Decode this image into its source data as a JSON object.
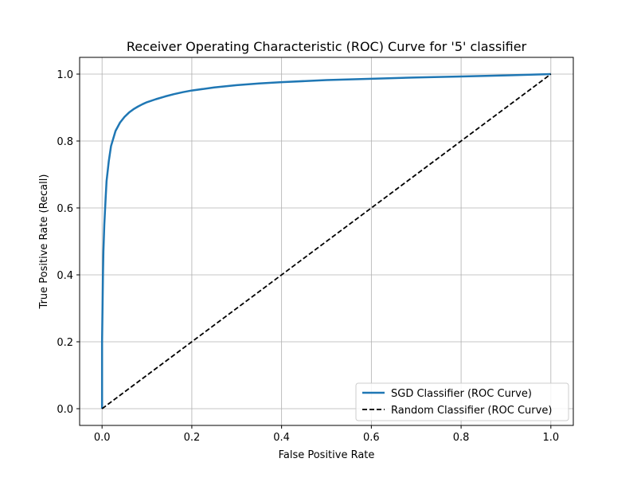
{
  "chart_data": {
    "type": "line",
    "title": "Receiver Operating Characteristic (ROC) Curve for '5' classifier",
    "xlabel": "False Positive Rate",
    "ylabel": "True Positive Rate (Recall)",
    "xlim": [
      -0.05,
      1.05
    ],
    "ylim": [
      -0.05,
      1.05
    ],
    "xticks": [
      0.0,
      0.2,
      0.4,
      0.6,
      0.8,
      1.0
    ],
    "xtick_labels": [
      "0.0",
      "0.2",
      "0.4",
      "0.6",
      "0.8",
      "1.0"
    ],
    "yticks": [
      0.0,
      0.2,
      0.4,
      0.6,
      0.8,
      1.0
    ],
    "ytick_labels": [
      "0.0",
      "0.2",
      "0.4",
      "0.6",
      "0.8",
      "1.0"
    ],
    "grid": true,
    "legend_position": "lower-right",
    "series": [
      {
        "name": "SGD Classifier (ROC Curve)",
        "color": "#1f77b4",
        "style": "solid",
        "x": [
          0.0,
          0.0,
          0.001,
          0.002,
          0.003,
          0.005,
          0.008,
          0.01,
          0.015,
          0.02,
          0.03,
          0.04,
          0.05,
          0.06,
          0.07,
          0.08,
          0.09,
          0.1,
          0.12,
          0.14,
          0.16,
          0.18,
          0.2,
          0.25,
          0.3,
          0.35,
          0.4,
          0.5,
          0.6,
          0.7,
          0.8,
          0.9,
          1.0
        ],
        "y": [
          0.0,
          0.2,
          0.3,
          0.4,
          0.47,
          0.55,
          0.63,
          0.68,
          0.74,
          0.785,
          0.83,
          0.855,
          0.872,
          0.885,
          0.895,
          0.903,
          0.91,
          0.916,
          0.925,
          0.933,
          0.94,
          0.946,
          0.951,
          0.96,
          0.967,
          0.972,
          0.976,
          0.982,
          0.986,
          0.99,
          0.993,
          0.996,
          1.0
        ]
      },
      {
        "name": "Random Classifier (ROC Curve)",
        "color": "#000000",
        "style": "dashed",
        "x": [
          0.0,
          1.0
        ],
        "y": [
          0.0,
          1.0
        ]
      }
    ]
  }
}
